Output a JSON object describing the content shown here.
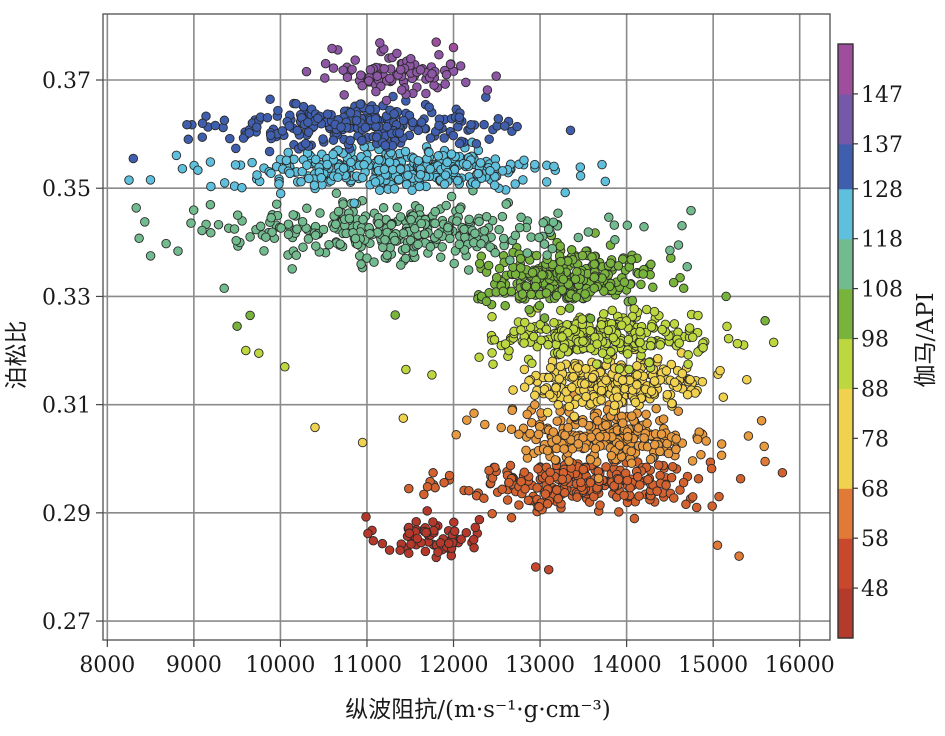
{
  "chart_data": {
    "type": "scatter",
    "title": "",
    "xlabel": "纵波阻抗/(m·s⁻¹·g·cm⁻³)",
    "ylabel": "泊松比",
    "xlim": [
      7950,
      16350
    ],
    "ylim": [
      0.2665,
      0.3822
    ],
    "xticks": [
      8000,
      9000,
      10000,
      11000,
      12000,
      13000,
      14000,
      15000,
      16000
    ],
    "xtick_labels": [
      "8000",
      "9000",
      "10000",
      "11000",
      "12000",
      "13000",
      "14000",
      "15000",
      "16000"
    ],
    "yticks": [
      0.27,
      0.29,
      0.31,
      0.33,
      0.35,
      0.37
    ],
    "ytick_labels": [
      "0.27",
      "0.29",
      "0.31",
      "0.33",
      "0.35",
      "0.37"
    ],
    "grid": true,
    "colorbar": {
      "label": "伽马/API",
      "range": [
        38,
        157
      ],
      "bands": [
        {
          "from": 38,
          "to": 48,
          "color": "#b43a2c"
        },
        {
          "from": 48,
          "to": 58,
          "color": "#c8482e"
        },
        {
          "from": 58,
          "to": 68,
          "color": "#e07a36"
        },
        {
          "from": 68,
          "to": 78,
          "color": "#f1d24e"
        },
        {
          "from": 78,
          "to": 88,
          "color": "#f1d24e"
        },
        {
          "from": 88,
          "to": 98,
          "color": "#bdd83f"
        },
        {
          "from": 98,
          "to": 108,
          "color": "#78b33c"
        },
        {
          "from": 108,
          "to": 118,
          "color": "#72bb8e"
        },
        {
          "from": 118,
          "to": 128,
          "color": "#5ec0dc"
        },
        {
          "from": 128,
          "to": 137,
          "color": "#3f5eae"
        },
        {
          "from": 137,
          "to": 147,
          "color": "#7658a8"
        },
        {
          "from": 147,
          "to": 157,
          "color": "#9e4e9c"
        }
      ],
      "ticks": [
        48,
        58,
        68,
        78,
        88,
        98,
        108,
        118,
        128,
        137,
        147
      ],
      "tick_labels": [
        "48",
        "58",
        "68",
        "78",
        "88",
        "98",
        "108",
        "118",
        "128",
        "137",
        "147"
      ]
    },
    "clusters": [
      {
        "gamma": 143,
        "x_center": 11400,
        "x_spread": 1000,
        "y_center": 0.3715,
        "y_spread": 0.004,
        "count": 95,
        "color": "#8e57a5"
      },
      {
        "gamma": 133,
        "x_center": 10900,
        "x_spread": 1850,
        "y_center": 0.3615,
        "y_spread": 0.0035,
        "count": 260,
        "color": "#3f5eae"
      },
      {
        "gamma": 123,
        "x_center": 11300,
        "x_spread": 2200,
        "y_center": 0.3535,
        "y_spread": 0.0035,
        "count": 360,
        "color": "#5ec0dc"
      },
      {
        "gamma": 113,
        "x_center": 11300,
        "x_spread": 2600,
        "y_center": 0.342,
        "y_spread": 0.005,
        "count": 330,
        "color": "#72bb8e"
      },
      {
        "gamma": 103,
        "x_center": 13300,
        "x_spread": 1200,
        "y_center": 0.3335,
        "y_spread": 0.0045,
        "count": 300,
        "color": "#78b33c"
      },
      {
        "gamma": 93,
        "x_center": 13700,
        "x_spread": 1350,
        "y_center": 0.3225,
        "y_spread": 0.004,
        "count": 280,
        "color": "#bdd83f"
      },
      {
        "gamma": 83,
        "x_center": 13900,
        "x_spread": 1250,
        "y_center": 0.314,
        "y_spread": 0.004,
        "count": 270,
        "color": "#f1d24e"
      },
      {
        "gamma": 73,
        "x_center": 13800,
        "x_spread": 1450,
        "y_center": 0.3045,
        "y_spread": 0.0045,
        "count": 260,
        "color": "#e89a3e"
      },
      {
        "gamma": 63,
        "x_center": 13500,
        "x_spread": 1700,
        "y_center": 0.2955,
        "y_spread": 0.0045,
        "count": 300,
        "color": "#d4622f"
      },
      {
        "gamma": 53,
        "x_center": 11700,
        "x_spread": 700,
        "y_center": 0.2855,
        "y_spread": 0.0035,
        "count": 70,
        "color": "#b5382b"
      }
    ],
    "outliers": [
      {
        "x": 10400,
        "y": 0.3058,
        "gamma": 73
      },
      {
        "x": 10950,
        "y": 0.303,
        "gamma": 68
      },
      {
        "x": 11420,
        "y": 0.3075,
        "gamma": 68
      },
      {
        "x": 10050,
        "y": 0.317,
        "gamma": 88
      },
      {
        "x": 9750,
        "y": 0.3195,
        "gamma": 93
      },
      {
        "x": 9600,
        "y": 0.32,
        "gamma": 93
      },
      {
        "x": 9650,
        "y": 0.3265,
        "gamma": 98
      },
      {
        "x": 9500,
        "y": 0.3245,
        "gamma": 98
      },
      {
        "x": 11750,
        "y": 0.3155,
        "gamma": 88
      },
      {
        "x": 11450,
        "y": 0.3165,
        "gamma": 93
      },
      {
        "x": 15700,
        "y": 0.3215,
        "gamma": 93
      },
      {
        "x": 15600,
        "y": 0.3255,
        "gamma": 98
      },
      {
        "x": 15150,
        "y": 0.33,
        "gamma": 103
      },
      {
        "x": 15300,
        "y": 0.282,
        "gamma": 58
      },
      {
        "x": 15600,
        "y": 0.2995,
        "gamma": 63
      },
      {
        "x": 15050,
        "y": 0.284,
        "gamma": 58
      },
      {
        "x": 13100,
        "y": 0.2795,
        "gamma": 53
      },
      {
        "x": 12950,
        "y": 0.28,
        "gamma": 53
      },
      {
        "x": 9350,
        "y": 0.3315,
        "gamma": 108
      },
      {
        "x": 8500,
        "y": 0.3375,
        "gamma": 113
      },
      {
        "x": 8250,
        "y": 0.3515,
        "gamma": 123
      },
      {
        "x": 8300,
        "y": 0.3555,
        "gamma": 128
      },
      {
        "x": 11800,
        "y": 0.377,
        "gamma": 147
      },
      {
        "x": 12000,
        "y": 0.376,
        "gamma": 147
      },
      {
        "x": 14500,
        "y": 0.3385,
        "gamma": 113
      },
      {
        "x": 14600,
        "y": 0.3395,
        "gamma": 113
      },
      {
        "x": 14700,
        "y": 0.3355,
        "gamma": 108
      }
    ]
  }
}
